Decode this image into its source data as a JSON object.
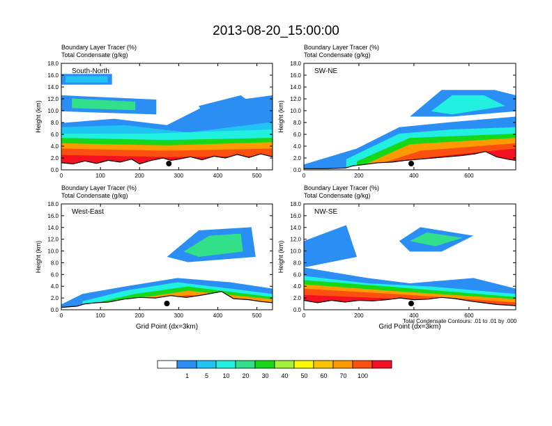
{
  "title": "2013-08-20_15:00:00",
  "panel_header": {
    "line1": "Boundary Layer Tracer   (%)",
    "line2": "Total Condensate   (g/kg)"
  },
  "ylabel": "Height (km)",
  "xlabel": "Grid Point (dx=3km)",
  "contour_note": "Total Condensate Contours: .01 to .01 by .000",
  "colorbar": {
    "labels": [
      "1",
      "5",
      "10",
      "20",
      "30",
      "40",
      "50",
      "60",
      "70",
      "100"
    ],
    "colors": [
      "#ffffff",
      "#2a8ef5",
      "#1fc4f2",
      "#21f0e0",
      "#33e08a",
      "#16d819",
      "#a4f03c",
      "#fbf800",
      "#fdc200",
      "#fd9a00",
      "#fb5010",
      "#f41222"
    ]
  },
  "chart_data": [
    {
      "type": "heatmap",
      "panel_label": "South-North",
      "xlim": [
        0,
        540
      ],
      "ylim": [
        0,
        18
      ],
      "xticks": [
        "0",
        "100",
        "200",
        "300",
        "400",
        "500"
      ],
      "yticks": [
        "0.0",
        "2.0",
        "4.0",
        "6.0",
        "8.0",
        "10.0",
        "12.0",
        "14.0",
        "16.0",
        "18.0"
      ],
      "terrain": [
        [
          0,
          1.2
        ],
        [
          30,
          1.0
        ],
        [
          60,
          1.5
        ],
        [
          90,
          1.1
        ],
        [
          120,
          1.6
        ],
        [
          150,
          1.3
        ],
        [
          180,
          1.8
        ],
        [
          200,
          1.0
        ],
        [
          230,
          1.6
        ],
        [
          260,
          2.0
        ],
        [
          280,
          1.6
        ],
        [
          300,
          1.8
        ],
        [
          330,
          2.2
        ],
        [
          360,
          1.7
        ],
        [
          390,
          2.3
        ],
        [
          420,
          2.0
        ],
        [
          450,
          2.6
        ],
        [
          480,
          2.1
        ],
        [
          510,
          2.7
        ],
        [
          540,
          2.2
        ]
      ],
      "marker_x": 275
    },
    {
      "type": "heatmap",
      "panel_label": "SW-NE",
      "xlim": [
        0,
        770
      ],
      "ylim": [
        0,
        18
      ],
      "xticks": [
        "0",
        "200",
        "400",
        "600"
      ],
      "yticks": [
        "0.0",
        "2.0",
        "4.0",
        "6.0",
        "8.0",
        "10.0",
        "12.0",
        "14.0",
        "16.0",
        "18.0"
      ],
      "terrain": [
        [
          0,
          0.2
        ],
        [
          80,
          0.2
        ],
        [
          150,
          0.3
        ],
        [
          180,
          0.7
        ],
        [
          220,
          0.9
        ],
        [
          270,
          1.2
        ],
        [
          320,
          1.3
        ],
        [
          370,
          1.6
        ],
        [
          420,
          1.8
        ],
        [
          470,
          2.0
        ],
        [
          520,
          2.2
        ],
        [
          570,
          2.4
        ],
        [
          620,
          2.7
        ],
        [
          660,
          3.1
        ],
        [
          700,
          2.2
        ],
        [
          740,
          1.8
        ],
        [
          770,
          1.6
        ]
      ],
      "marker_x": 390
    },
    {
      "type": "heatmap",
      "panel_label": "West-East",
      "xlim": [
        0,
        540
      ],
      "ylim": [
        0,
        18
      ],
      "xticks": [
        "0",
        "100",
        "200",
        "300",
        "400",
        "500"
      ],
      "yticks": [
        "0.0",
        "2.0",
        "4.0",
        "6.0",
        "8.0",
        "10.0",
        "12.0",
        "14.0",
        "16.0",
        "18.0"
      ],
      "terrain": [
        [
          0,
          0.4
        ],
        [
          40,
          0.6
        ],
        [
          60,
          1.0
        ],
        [
          90,
          1.2
        ],
        [
          120,
          1.3
        ],
        [
          160,
          1.8
        ],
        [
          200,
          2.1
        ],
        [
          240,
          2.0
        ],
        [
          280,
          2.4
        ],
        [
          320,
          2.1
        ],
        [
          360,
          2.5
        ],
        [
          410,
          3.1
        ],
        [
          440,
          1.9
        ],
        [
          480,
          1.7
        ],
        [
          510,
          1.4
        ],
        [
          540,
          1.2
        ]
      ],
      "marker_x": 270
    },
    {
      "type": "heatmap",
      "panel_label": "NW-SE",
      "xlim": [
        0,
        770
      ],
      "ylim": [
        0,
        18
      ],
      "xticks": [
        "0",
        "200",
        "400",
        "600"
      ],
      "yticks": [
        "0.0",
        "2.0",
        "4.0",
        "6.0",
        "8.0",
        "10.0",
        "12.0",
        "14.0",
        "16.0",
        "18.0"
      ],
      "terrain": [
        [
          0,
          1.6
        ],
        [
          50,
          1.2
        ],
        [
          100,
          1.6
        ],
        [
          150,
          1.3
        ],
        [
          200,
          1.6
        ],
        [
          250,
          1.5
        ],
        [
          300,
          1.7
        ],
        [
          350,
          2.0
        ],
        [
          400,
          1.7
        ],
        [
          450,
          1.8
        ],
        [
          500,
          2.1
        ],
        [
          550,
          1.9
        ],
        [
          600,
          1.5
        ],
        [
          650,
          1.2
        ],
        [
          700,
          0.9
        ],
        [
          770,
          0.7
        ]
      ],
      "marker_x": 390
    }
  ]
}
